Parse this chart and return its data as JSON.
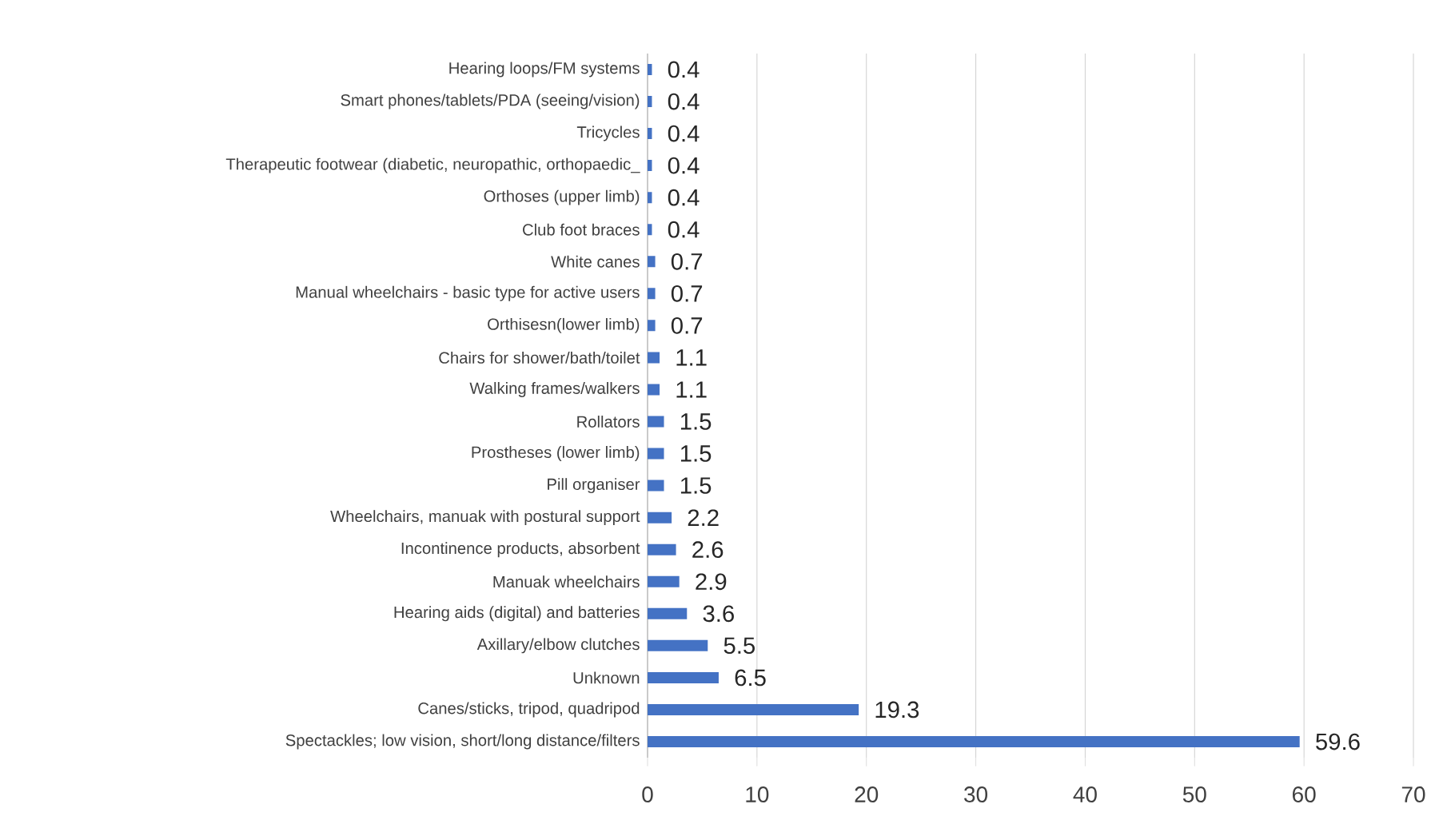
{
  "chart_data": {
    "type": "bar",
    "orientation": "horizontal",
    "categories": [
      "Hearing loops/FM systems",
      "Smart phones/tablets/PDA (seeing/vision)",
      "Tricycles",
      "Therapeutic footwear (diabetic, neuropathic, orthopaedic_",
      "Orthoses (upper limb)",
      "Club foot braces",
      "White canes",
      "Manual wheelchairs - basic type for active users",
      "Orthisesn(lower limb)",
      "Chairs for shower/bath/toilet",
      "Walking frames/walkers",
      "Rollators",
      "Prostheses (lower limb)",
      "Pill organiser",
      "Wheelchairs, manuak with postural support",
      "Incontinence products, absorbent",
      "Manuak wheelchairs",
      "Hearing aids (digital) and batteries",
      "Axillary/elbow clutches",
      "Unknown",
      "Canes/sticks, tripod, quadripod",
      "Spectackles; low vision, short/long distance/filters"
    ],
    "values": [
      0.4,
      0.4,
      0.4,
      0.4,
      0.4,
      0.4,
      0.7,
      0.7,
      0.7,
      1.1,
      1.1,
      1.5,
      1.5,
      1.5,
      2.2,
      2.6,
      2.9,
      3.6,
      5.5,
      6.5,
      19.3,
      59.6
    ],
    "color": "#4472c4",
    "data_labels": true,
    "grid": "x",
    "xlim": [
      0,
      70
    ],
    "xticks": [
      0,
      10,
      20,
      30,
      40,
      50,
      60,
      70
    ]
  }
}
